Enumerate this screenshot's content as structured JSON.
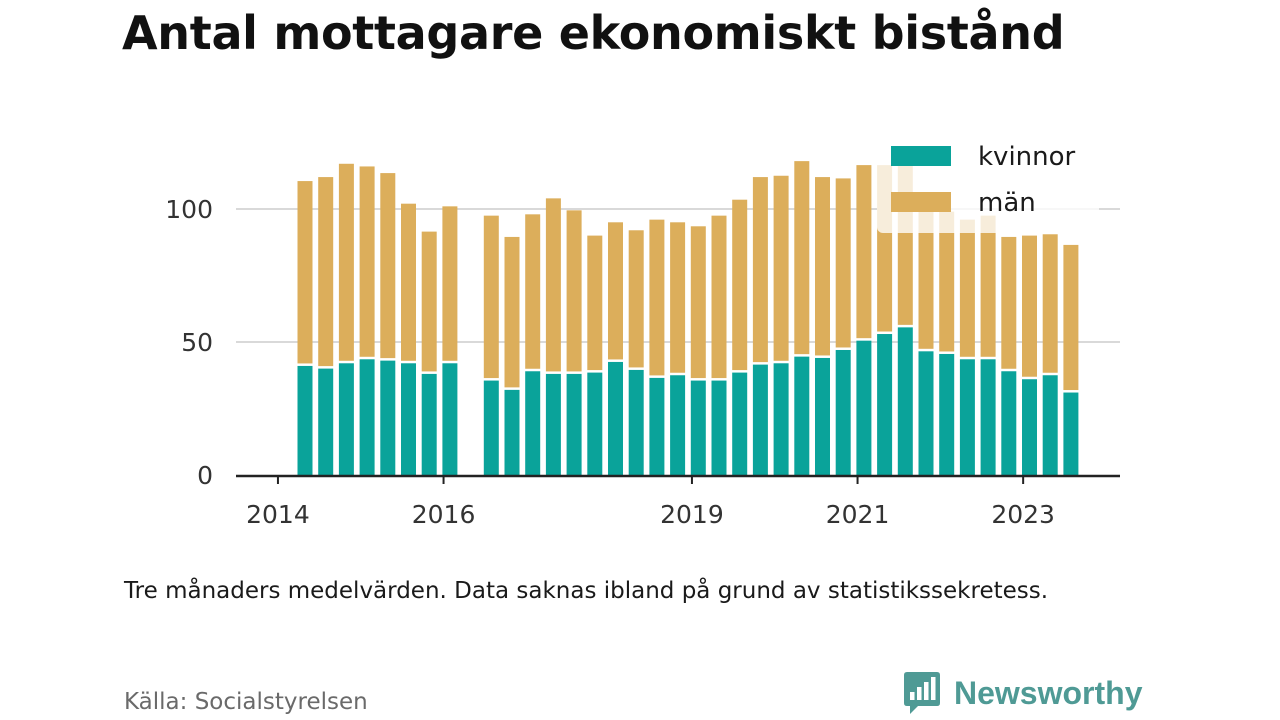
{
  "title": "Antal mottagare ekonomiskt bistånd",
  "note": "Tre månaders medelvärden. Data saknas ibland på grund av statistikssekretess.",
  "source": "Källa: Socialstyrelsen",
  "brand": {
    "name": "Newsworthy",
    "icon": "newsworthy-logo-icon"
  },
  "colors": {
    "kvinnor": "#0aa39a",
    "man": "#dcae5b",
    "grid": "#d9d9d9",
    "axis": "#222222"
  },
  "chart_data": {
    "type": "bar",
    "stacked": true,
    "categories": [
      "2014-Q2",
      "2014-Q3",
      "2014-Q4",
      "2015-Q1",
      "2015-Q2",
      "2015-Q3",
      "2015-Q4",
      "2016-Q1",
      "2016-Q2",
      "2016-Q3",
      "2016-Q4",
      "2017-Q1",
      "2017-Q2",
      "2017-Q3",
      "2017-Q4",
      "2018-Q1",
      "2018-Q2",
      "2018-Q3",
      "2018-Q4",
      "2019-Q1",
      "2019-Q2",
      "2019-Q3",
      "2019-Q4",
      "2020-Q1",
      "2020-Q2",
      "2020-Q3",
      "2020-Q4",
      "2021-Q1",
      "2021-Q2",
      "2021-Q3",
      "2021-Q4",
      "2022-Q1",
      "2022-Q2",
      "2022-Q3",
      "2022-Q4",
      "2023-Q1",
      "2023-Q2",
      "2023-Q3"
    ],
    "series": [
      {
        "name": "kvinnor",
        "values": [
          41,
          40,
          42,
          43.5,
          43,
          42,
          38,
          42,
          null,
          35.5,
          32,
          39,
          38,
          38,
          38.5,
          42.5,
          39.5,
          36.5,
          37.5,
          35.5,
          35.5,
          38.5,
          41.5,
          42,
          44.5,
          44,
          47,
          50.5,
          53,
          55.5,
          46.5,
          45.5,
          43.5,
          43.5,
          39,
          36,
          37.5,
          31
        ]
      },
      {
        "name": "män",
        "values": [
          69.5,
          72,
          75,
          72.5,
          70.5,
          60,
          53.5,
          59,
          null,
          62,
          57.5,
          59,
          66,
          61.5,
          51.5,
          52.5,
          52.5,
          59.5,
          57.5,
          58,
          62,
          65,
          70.5,
          70.5,
          73.5,
          68,
          64.5,
          66,
          63.5,
          61.5,
          53,
          53.5,
          52.5,
          54,
          50.5,
          54,
          53,
          55.5
        ]
      }
    ],
    "x_ticks": [
      "2014",
      "2016",
      "2019",
      "2021",
      "2023"
    ],
    "y_ticks": [
      0,
      50,
      100
    ],
    "ylim": [
      0,
      125
    ],
    "legend": {
      "position": "top-right",
      "entries": [
        "kvinnor",
        "män"
      ]
    },
    "grid": true
  }
}
